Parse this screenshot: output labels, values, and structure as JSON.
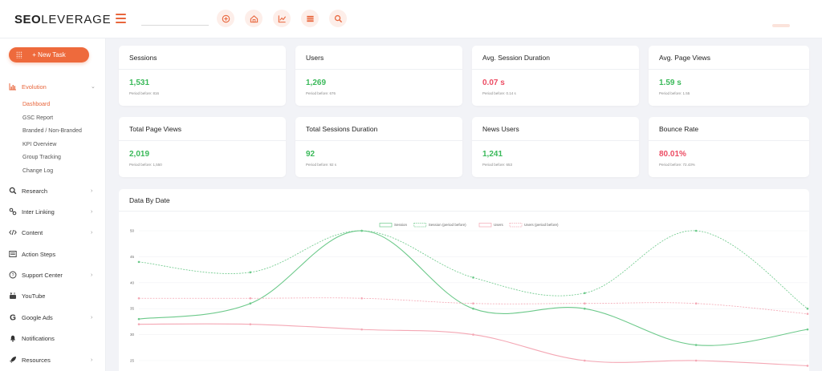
{
  "header": {
    "logo_bold": "SEO",
    "logo_light": "LEVERAGE",
    "search": {
      "value": "",
      "placeholder": ""
    },
    "buttons": [
      {
        "name": "add-circle-icon"
      },
      {
        "name": "home-icon"
      },
      {
        "name": "trend-chart-icon"
      },
      {
        "name": "list-icon"
      },
      {
        "name": "search-icon"
      }
    ]
  },
  "sidebar": {
    "new_task_label": "+ New Task",
    "evolution_label": "Evolution",
    "evolution_sub": [
      "Dashboard",
      "GSC Report",
      "Branded / Non-Branded",
      "KPI Overview",
      "Group Tracking",
      "Change Log"
    ],
    "items": [
      {
        "label": "Research",
        "icon": "search-icon",
        "chevron": true
      },
      {
        "label": "Inter Linking",
        "icon": "link-icon",
        "chevron": true
      },
      {
        "label": "Content",
        "icon": "code-icon",
        "chevron": true
      },
      {
        "label": "Action Steps",
        "icon": "list-box-icon",
        "chevron": false
      },
      {
        "label": "Support Center",
        "icon": "help-circle-icon",
        "chevron": true
      },
      {
        "label": "YouTube",
        "icon": "youtube-icon",
        "chevron": false
      },
      {
        "label": "Google Ads",
        "icon": "google-icon",
        "chevron": true
      },
      {
        "label": "Notifications",
        "icon": "bell-icon",
        "chevron": false
      },
      {
        "label": "Resources",
        "icon": "rocket-icon",
        "chevron": true
      }
    ]
  },
  "cards": [
    {
      "title": "Sessions",
      "value": "1,531",
      "prev": "Period before: 816",
      "color": "green"
    },
    {
      "title": "Users",
      "value": "1,269",
      "prev": "Period before: 676",
      "color": "green"
    },
    {
      "title": "Avg. Session Duration",
      "value": "0.07 s",
      "prev": "Period before: 0.14 s",
      "color": "red"
    },
    {
      "title": "Avg. Page Views",
      "value": "1.59 s",
      "prev": "Period before: 1.55",
      "color": "green"
    },
    {
      "title": "Total Page Views",
      "value": "2,019",
      "prev": "Period before: 1,550",
      "color": "green"
    },
    {
      "title": "Total Sessions Duration",
      "value": "92",
      "prev": "Period before: 92 s",
      "color": "green"
    },
    {
      "title": "News Users",
      "value": "1,241",
      "prev": "Period before: 653",
      "color": "green"
    },
    {
      "title": "Bounce Rate",
      "value": "80.01%",
      "prev": "Period before: 72.43%",
      "color": "red"
    }
  ],
  "colors": {
    "accent": "#ee6a3c",
    "green": "#3bb95a",
    "red": "#ec4c63",
    "session_line": "#6cc98a",
    "users_line": "#f4a7b4"
  },
  "chart_title": "Data By Date",
  "chart_data": {
    "type": "line",
    "title": "Data By Date",
    "x": [
      0,
      1,
      2,
      3,
      4,
      5,
      6
    ],
    "ylim": [
      25,
      50
    ],
    "yticks": [
      25,
      30,
      35,
      40,
      45,
      50
    ],
    "grid": true,
    "legend_position": "top-center",
    "series": [
      {
        "name": "Session",
        "style": "solid",
        "color": "#6cc98a",
        "values": [
          33,
          36,
          50,
          35,
          35,
          28,
          31
        ]
      },
      {
        "name": "Session (period before)",
        "style": "dashed",
        "color": "#6cc98a",
        "values": [
          44,
          42,
          50,
          41,
          38,
          50,
          35
        ]
      },
      {
        "name": "Users",
        "style": "solid",
        "color": "#f4a7b4",
        "values": [
          32,
          32,
          31,
          30,
          25,
          25,
          24
        ]
      },
      {
        "name": "Users (period before)",
        "style": "dashed",
        "color": "#f4a7b4",
        "values": [
          37,
          37,
          37,
          36,
          36,
          36,
          34
        ]
      }
    ]
  }
}
